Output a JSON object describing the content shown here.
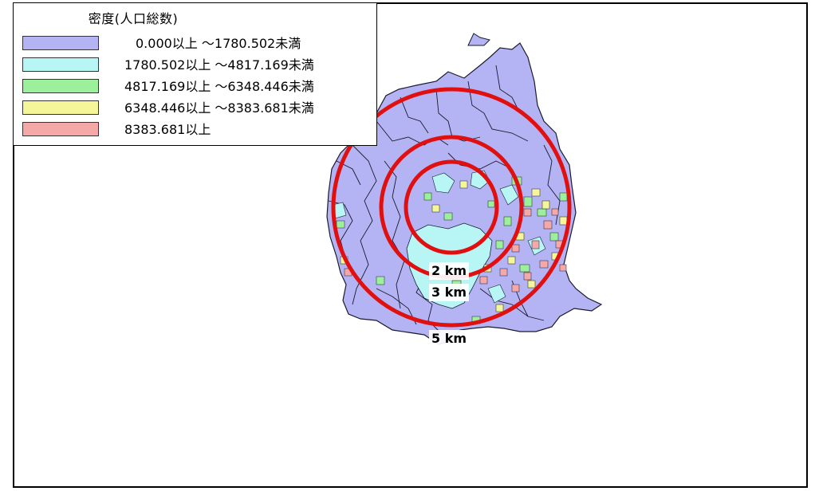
{
  "legend": {
    "title": "密度(人口総数)",
    "items": [
      {
        "label": "0.000以上 〜1780.502未満",
        "color": "#b4b4f5"
      },
      {
        "label": "1780.502以上 〜4817.169未満",
        "color": "#b8f5f5"
      },
      {
        "label": "4817.169以上 〜6348.446未満",
        "color": "#9cf09c"
      },
      {
        "label": "6348.446以上 〜8383.681未満",
        "color": "#f5f59a"
      },
      {
        "label": "8383.681以上",
        "color": "#f5a8a8"
      }
    ]
  },
  "rings": [
    {
      "label": "2 km"
    },
    {
      "label": "3 km"
    },
    {
      "label": "5 km"
    }
  ],
  "colors": {
    "ring": "#e01010",
    "boundary": "#1a1a2e",
    "region_base": "#b4b4f5"
  }
}
